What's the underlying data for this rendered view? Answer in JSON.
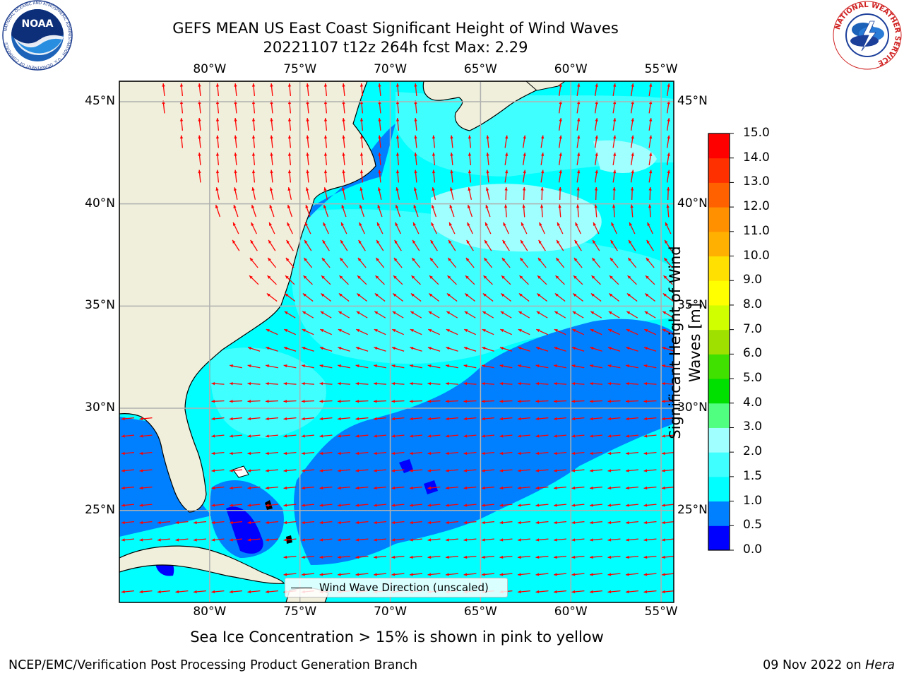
{
  "header": {
    "title_line1": "GEFS MEAN US East Coast Significant Height of Wind Waves",
    "title_line2": "20221107 t12z 264h fcst   Max: 2.29"
  },
  "logos": {
    "noaa_text": "NOAA",
    "noaa_ring_text": "NATIONAL OCEANIC AND ATMOSPHERIC ADMINISTRATION · U.S. DEPARTMENT OF COMMERCE",
    "nws_ring_text": "NATIONAL WEATHER SERVICE"
  },
  "map": {
    "lon_labels": [
      "80°W",
      "75°W",
      "70°W",
      "65°W",
      "60°W",
      "55°W"
    ],
    "lat_labels": [
      "45°N",
      "40°N",
      "35°N",
      "30°N",
      "25°N"
    ],
    "lon_values": [
      -80,
      -75,
      -70,
      -65,
      -60,
      -55
    ],
    "lat_values": [
      45,
      40,
      35,
      30,
      25
    ],
    "extent": {
      "lon_min": -85,
      "lon_max": -54.3,
      "lat_min": 20.5,
      "lat_max": 46
    },
    "land_color": "#efefdb",
    "arrow_color": "#ff0000",
    "legend_label": "Wind Wave Direction (unscaled)"
  },
  "colorbar": {
    "label_line1": "Significant Height of Wind",
    "label_line2": "Waves [m]",
    "ticks": [
      "0.0",
      "0.5",
      "1.0",
      "1.5",
      "2.0",
      "3.0",
      "4.0",
      "5.0",
      "6.0",
      "7.0",
      "8.0",
      "9.0",
      "10.0",
      "11.0",
      "12.0",
      "13.0",
      "14.0",
      "15.0"
    ],
    "colors": [
      "#0000ff",
      "#0080ff",
      "#00ffff",
      "#40ffff",
      "#a0ffff",
      "#50ff80",
      "#00e000",
      "#40e000",
      "#a0e000",
      "#d0ff00",
      "#ffff00",
      "#ffe000",
      "#ffb000",
      "#ff9000",
      "#ff6000",
      "#ff3000",
      "#ff0000"
    ]
  },
  "notes": {
    "sea_ice": "Sea Ice Concentration > 15% is shown in pink to yellow"
  },
  "footer": {
    "left": "NCEP/EMC/Verification Post Processing Product Generation Branch",
    "date": "09 Nov 2022 on ",
    "host": "Hera"
  }
}
